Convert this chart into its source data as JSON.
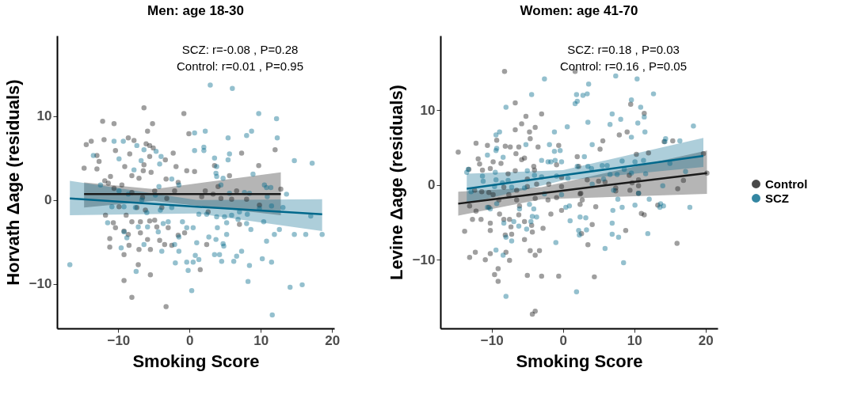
{
  "chart_data": [
    {
      "type": "scatter",
      "title": "Men: age 18-30",
      "xlabel": "Smoking Score",
      "ylabel": "Horvath Δage (residuals)",
      "annotations": [
        "SCZ: r=-0.08 , P=0.28",
        "Control: r=0.01 , P=0.95"
      ],
      "xlim": [
        -18.6,
        20.3
      ],
      "xticks": [
        -10,
        0,
        10,
        20
      ],
      "ylim": [
        -15.3,
        19.6
      ],
      "yticks": [
        -10,
        0,
        10
      ],
      "grid": false,
      "legend": "right",
      "marker": "circle",
      "series": [
        {
          "name": "Control",
          "color": "#1a1a1a",
          "x": [
            -6.4,
            -0.8,
            -12.2,
            -10.6,
            -5.2,
            -5.9,
            -0.1,
            -14.5,
            -13.8,
            -12.0,
            -8.6,
            -7.8,
            -6.1,
            -5.6,
            -5.1,
            -10.4,
            -13.0,
            -8.4,
            -5.6,
            -2.3,
            -3.4,
            -12.7,
            -14.8,
            -13.0,
            -9.1,
            -6.4,
            -1.9,
            -0.4,
            0.7,
            -11.1,
            -8.1,
            -6.5,
            -11.9,
            -11.4,
            -7.1,
            -3.3,
            -1.6,
            -11.8,
            -10.4,
            -8.1,
            -6.9,
            -5.6,
            -4.6,
            -10.7,
            -11.2,
            -8.6,
            -11.2,
            -9.2,
            -6.9,
            -8.5,
            -7.1,
            -5.9,
            -5.5,
            -4.2,
            -9.2,
            -3.5,
            -2.5,
            -7.2,
            -5.5,
            -9.2,
            -8.1,
            -3.3,
            -0.7,
            -7.4,
            -9.9,
            -3.9,
            -2.1,
            -3.2,
            -8.9,
            -6.2,
            -3.0,
            -1.6,
            -4.9,
            -8.1,
            -10.6,
            -6.6,
            -4.9,
            -5.4,
            -9.5,
            7.3,
            12.0,
            9.7,
            3.5,
            5.6,
            4.0,
            6.6,
            2.2,
            12.8,
            3.3,
            1.7,
            5.9,
            8.0,
            4.4,
            2.6,
            7.0,
            2.4,
            1.5,
            9.8
          ],
          "values": [
            11.0,
            10.3,
            9.4,
            9.1,
            9.1,
            8.2,
            7.9,
            6.6,
            7.0,
            7.2,
            7.4,
            7.1,
            6.7,
            6.5,
            6.2,
            5.9,
            5.3,
            5.5,
            5.2,
            5.6,
            4.8,
            4.6,
            3.8,
            3.7,
            4.0,
            4.2,
            4.0,
            3.5,
            3.4,
            2.8,
            2.9,
            3.5,
            2.3,
            2.0,
            2.6,
            2.5,
            2.1,
            -1.8,
            -3.3,
            -2.6,
            -2.6,
            -2.5,
            -3.2,
            -2.7,
            -4.6,
            -4.1,
            -5.6,
            -3.7,
            -3.9,
            -5.4,
            -5.9,
            -4.7,
            -5.9,
            -4.8,
            -6.5,
            -5.3,
            -5.4,
            -7.7,
            -8.9,
            -9.6,
            -11.6,
            -12.7,
            -3.9,
            -0.9,
            -0.8,
            -0.9,
            1.1,
            0.2,
            -1.8,
            -1.2,
            -3.3,
            -4.2,
            -2.4,
            0.9,
            1.4,
            0.3,
            1.1,
            3.3,
            1.8,
            5.6,
            6.0,
            4.1,
            4.1,
            2.9,
            1.6,
            1.1,
            1.1,
            1.3,
            0.7,
            0.4,
            0.1,
            0.1,
            0.2,
            -1.4,
            -2.9,
            -5.3,
            -8.3,
            -0.6
          ]
        },
        {
          "name": "SCZ",
          "color": "#00688b",
          "x": [
            -16.8,
            -13.5,
            -10.6,
            -9.3,
            -7.4,
            -6.4,
            -4.7,
            -4.0,
            -4.2,
            -9.9,
            -6.8,
            -7.8,
            -2.5,
            0.7,
            0.7,
            -12.5,
            -10.9,
            -9.2,
            -7.6,
            -6.0,
            -4.1,
            -2.5,
            -11.5,
            -9.2,
            -8.8,
            -9.6,
            -7.2,
            -5.9,
            -4.4,
            -3.7,
            -3.0,
            -1.5,
            -1.0,
            -0.4,
            0.5,
            -2.1,
            -2.0,
            -1.5,
            0.8,
            -0.4,
            0.5,
            -7.5,
            -0.2,
            0.3,
            -6.4,
            -3.9,
            1.0,
            -4.3,
            -8.6,
            -9.9,
            -6.7,
            -4.8,
            -1.5,
            2.9,
            6.0,
            9.7,
            12.2,
            2.2,
            5.4,
            8.0,
            8.7,
            12.3,
            2.0,
            2.0,
            5.6,
            5.4,
            3.5,
            14.7,
            17.2,
            3.8,
            3.7,
            4.7,
            8.9,
            10.5,
            11.4,
            13.6,
            10.8,
            3.8,
            4.4,
            5.6,
            7.7,
            8.4,
            10.9,
            11.5,
            13.1,
            17.0,
            9.8,
            8.1,
            7.0,
            5.9,
            4.9,
            3.8,
            1.3,
            2.4,
            5.2,
            6.8,
            8.0,
            8.6,
            10.4,
            12.6,
            11.9,
            14.7,
            16.3,
            18.6,
            10.8,
            5.2,
            3.9,
            2.7,
            3.7,
            4.7,
            4.8,
            7.3,
            6.6,
            6.2,
            4.5,
            3.5,
            4.2,
            1.3,
            8.4,
            10.2,
            11.5,
            8.2,
            14.1,
            15.8,
            11.6
          ],
          "values": [
            -7.7,
            5.3,
            7.0,
            7.0,
            6.5,
            6.0,
            5.8,
            5.2,
            4.3,
            4.9,
            4.7,
            3.6,
            2.5,
            8.0,
            5.9,
            1.8,
            -0.8,
            -0.8,
            -0.9,
            -1.5,
            -1.2,
            -0.9,
            -2.7,
            -3.8,
            -4.5,
            -5.7,
            -3.2,
            -3.2,
            -3.8,
            -2.8,
            -2.6,
            -4.4,
            -2.6,
            -3.3,
            -3.3,
            -5.3,
            -7.5,
            -6.1,
            -6.6,
            -7.4,
            -7.4,
            -8.5,
            -8.4,
            -10.8,
            -5.3,
            -6.1,
            -5.1,
            1.6,
            0.7,
            1.1,
            0.0,
            0.6,
            1.8,
            13.7,
            13.3,
            10.3,
            9.7,
            8.2,
            7.4,
            7.7,
            8.2,
            7.4,
            6.3,
            5.9,
            5.5,
            4.8,
            5.0,
            4.7,
            4.4,
            4.0,
            3.2,
            2.6,
            3.1,
            1.8,
            1.5,
            0.7,
            1.5,
            2.8,
            1.8,
            0.8,
            0.9,
            0.8,
            0.4,
            -0.7,
            -0.9,
            -1.9,
            -1.0,
            -1.7,
            -1.4,
            -1.8,
            -2.0,
            -2.0,
            -1.7,
            -1.7,
            -2.7,
            -2.3,
            -2.8,
            -3.5,
            -2.6,
            -3.5,
            -4.1,
            -4.1,
            -4.1,
            -4.1,
            -4.9,
            -4.1,
            -3.3,
            -4.4,
            -4.7,
            -5.2,
            -5.5,
            -6.1,
            -6.7,
            -7.3,
            -7.3,
            -6.5,
            -6.5,
            -7.1,
            -7.8,
            -7.0,
            -7.4,
            -9.7,
            -10.4,
            -10.1,
            -13.7
          ]
        },
        {
          "type": "line",
          "marker": "none",
          "color": "#1a1a1a",
          "x": [
            -14.8,
            -5,
            12.8
          ],
          "values": [
            0.7,
            0.7,
            0.7
          ],
          "lower": [
            -0.9,
            -0.1,
            -1.8
          ],
          "upper": [
            2.1,
            1.3,
            3.3
          ]
        },
        {
          "type": "line",
          "marker": "none",
          "color": "#00688b",
          "x": [
            -16.8,
            1,
            18.6
          ],
          "values": [
            0.2,
            -0.8,
            -1.7
          ],
          "lower": [
            -1.8,
            -1.6,
            -3.7
          ],
          "upper": [
            2.3,
            0.0,
            0.1
          ]
        }
      ]
    },
    {
      "type": "scatter",
      "title": "Women: age 41-70",
      "xlabel": "Smoking Score",
      "ylabel": "Levine Δage (residuals)",
      "annotations": [
        "SCZ: r=0.18 , P=0.03",
        "Control: r=0.16 , P=0.05"
      ],
      "xlim": [
        -17.2,
        21.7
      ],
      "xticks": [
        -10,
        0,
        10,
        20
      ],
      "ylim": [
        -19.2,
        20
      ],
      "yticks": [
        -10,
        0,
        10
      ],
      "grid": false,
      "legend": "right",
      "marker": "circle",
      "series": [
        {
          "name": "Control",
          "color": "#1a1a1a",
          "x": [
            -8.2,
            1.7,
            -6.7,
            -5.2,
            -3.0,
            -5.8,
            -3.9,
            -4.7,
            -6.7,
            -9.3,
            -12.2,
            -10.6,
            -8.1,
            -7.4,
            -3.5,
            -0.6,
            -6.2,
            -4.6,
            -6.6,
            -5.4,
            -5.8,
            -4.1,
            2.0,
            -11.9,
            -11.7,
            -13.2,
            -9.8,
            -8.7,
            -11.3,
            -10.2,
            -14.7,
            -7.7,
            -6.7,
            -5.0,
            -4.0,
            -0.9,
            -0.2,
            -8.3,
            -10.4,
            -11.4,
            -12.4,
            -6.5,
            -5.0,
            -3.7,
            -2.0,
            -0.2,
            -9.8,
            -9.0,
            -7.6,
            -6.5,
            -6.1,
            -3.9,
            -2.1,
            -0.9,
            -13.1,
            -12.2,
            -10.4,
            -8.9,
            -8.3,
            -7.5,
            -6.2,
            -7.3,
            -5.4,
            -4.4,
            -2.8,
            -1.7,
            -0.2,
            2.4,
            2.4,
            -13.8,
            -12.7,
            -11.5,
            -10.2,
            -10.2,
            -8.1,
            -7.2,
            -5.4,
            -4.3,
            -13.1,
            -12.3,
            -10.9,
            -10.2,
            -9.1,
            -9.6,
            -9.1,
            -8.0,
            -7.5,
            -4.6,
            -3.9,
            -3.3,
            -5.0,
            -3.0,
            -0.6,
            -4.3,
            -3.9,
            9.5,
            11.4,
            7.9,
            9.0,
            5.6,
            5.2,
            2.2,
            10.3,
            12.0,
            15.4,
            3.4,
            5.0,
            5.9,
            7.4,
            9.3,
            9.7,
            10.6,
            10.6,
            7.4,
            9.4,
            10.6,
            2.5,
            2.7,
            4.6,
            11.0,
            11.4,
            13.3,
            16.1,
            16.9,
            20.2,
            19.7,
            14.2,
            4.1,
            2.6,
            3.5,
            8.8,
            16.0,
            4.4
          ],
          "values": [
            15.2,
            15.2,
            11.0,
            9.2,
            9.5,
            8.2,
            7.7,
            7.1,
            7.4,
            6.0,
            5.6,
            5.3,
            5.2,
            5.1,
            5.1,
            5.3,
            5.1,
            6.2,
            4.2,
            3.6,
            3.4,
            2.5,
            3.8,
            3.5,
            2.8,
            2.1,
            3.1,
            2.9,
            2.0,
            2.2,
            4.4,
            1.5,
            1.9,
            0.8,
            2.0,
            2.7,
            1.0,
            -0.3,
            -1.0,
            -0.9,
            -0.7,
            -0.7,
            -0.2,
            0.1,
            0.1,
            -0.2,
            -1.3,
            -2.0,
            -1.3,
            -2.0,
            -2.8,
            -1.8,
            -2.0,
            -1.7,
            -2.8,
            -3.5,
            -3.0,
            -3.9,
            -4.6,
            -4.6,
            -4.0,
            -5.6,
            -4.9,
            -5.4,
            -5.8,
            -3.9,
            -3.4,
            -2.6,
            -1.2,
            -6.2,
            -4.6,
            -4.6,
            -5.1,
            -6.1,
            -6.7,
            -6.6,
            -7.3,
            -6.3,
            -9.7,
            -9.0,
            -10.0,
            -9.2,
            -11.2,
            -12.0,
            -12.9,
            -9.0,
            -10.1,
            -8.8,
            -9.4,
            -8.8,
            -12.1,
            -12.2,
            -12.2,
            -17.3,
            -16.9,
            10.8,
            9.6,
            6.7,
            7.1,
            5.9,
            4.8,
            2.5,
            4.1,
            4.3,
            5.9,
            0.7,
            0.5,
            0.4,
            -0.4,
            1.3,
            0.3,
            0.7,
            -0.1,
            -0.8,
            -0.7,
            -1.1,
            -1.1,
            -2.0,
            -2.9,
            -3.8,
            -4.0,
            -2.7,
            -0.5,
            0.6,
            1.6,
            4.2,
            5.8,
            -5.3,
            -6.5,
            -8.0,
            -6.1,
            -7.8,
            -12.3
          ]
        },
        {
          "name": "SCZ",
          "color": "#00688b",
          "x": [
            -2.6,
            -4.4,
            -8.0,
            1.9,
            1.7,
            2.0,
            -8.9,
            -9.4,
            0.6,
            -1.2,
            -9.3,
            -9.4,
            -10.6,
            -8.4,
            -5.2,
            -1.9,
            -1.2,
            -0.4,
            -3.0,
            -2.1,
            -1.7,
            -1.1,
            -0.2,
            -13.5,
            -13.3,
            -11.3,
            -9.5,
            -9.4,
            -7.7,
            -5.0,
            -4.0,
            -3.0,
            -0.9,
            0.7,
            2.0,
            -11.2,
            -12.9,
            -9.6,
            -8.5,
            -7.2,
            -5.4,
            -2.6,
            -0.2,
            -10.2,
            -10.6,
            -9.3,
            0.9,
            0.4,
            -6.1,
            -4.7,
            -4.1,
            -4.3,
            -3.7,
            -8.3,
            -6.9,
            -6.2,
            -4.5,
            -5.1,
            1.0,
            2.4,
            2.2,
            2.3,
            -8.0,
            -7.2,
            -9.4,
            -8.4,
            -1.0,
            -8.0,
            1.9,
            7.4,
            10.4,
            3.6,
            2.8,
            3.4,
            12.7,
            9.6,
            10.9,
            6.9,
            8.1,
            11.4,
            3.5,
            6.6,
            10.5,
            11.5,
            9.6,
            18.3,
            14.4,
            14.3,
            16.4,
            4.1,
            3.0,
            3.5,
            4.0,
            6.2,
            5.5,
            8.3,
            10.1,
            11.3,
            15.0,
            8.6,
            9.6,
            11.6,
            17.2,
            6.6,
            7.6,
            5.7,
            4.1,
            7.1,
            10.6,
            14.0,
            7.7,
            12.1,
            13.7,
            13.6,
            14.1,
            17.8,
            10.1,
            8.3,
            7.0,
            3.2,
            6.9,
            3.3,
            11.9,
            6.9,
            7.8,
            5.9,
            8.5
          ],
          "values": [
            14.2,
            12.1,
            10.4,
            12.1,
            10.9,
            11.2,
            7.1,
            6.7,
            7.8,
            7.1,
            4.9,
            4.6,
            4.0,
            3.7,
            5.4,
            5.4,
            4.5,
            4.6,
            3.3,
            3.1,
            3.1,
            3.3,
            3.1,
            1.7,
            2.1,
            1.2,
            1.7,
            0.7,
            0.6,
            1.9,
            1.3,
            1.1,
            1.2,
            0.9,
            2.5,
            0.5,
            -0.9,
            -0.2,
            0.3,
            -0.3,
            -0.4,
            -1.2,
            -1.3,
            -3.2,
            -3.0,
            -2.5,
            -2.8,
            -3.0,
            -3.2,
            -2.6,
            -3.2,
            -4.2,
            -4.3,
            -5.1,
            -4.9,
            -5.5,
            -4.9,
            -5.9,
            -4.8,
            -4.3,
            -6.1,
            -6.7,
            -7.0,
            -7.5,
            -8.7,
            -9.4,
            -7.7,
            -14.9,
            -14.3,
            14.6,
            14.2,
            13.5,
            12.0,
            12.2,
            12.2,
            11.4,
            10.4,
            9.5,
            8.8,
            9.1,
            8.4,
            8.1,
            8.3,
            7.1,
            6.4,
            7.9,
            6.2,
            5.8,
            5.9,
            5.4,
            3.8,
            2.5,
            2.2,
            2.6,
            2.6,
            3.2,
            3.1,
            3.3,
            2.9,
            2.1,
            1.6,
            1.5,
            1.8,
            1.4,
            1.4,
            0.8,
            0.1,
            -0.7,
            -1.1,
            -0.1,
            -1.9,
            -1.9,
            -2.5,
            -3.0,
            -2.8,
            -3.0,
            -2.7,
            -3.0,
            -3.4,
            -4.4,
            -5.1,
            -6.0,
            -6.5,
            -6.6,
            -7.0,
            -8.5,
            -10.4
          ]
        },
        {
          "type": "line",
          "marker": "none",
          "color": "#1a1a1a",
          "x": [
            -14.7,
            -3,
            20.2
          ],
          "values": [
            -2.5,
            -1.1,
            1.6
          ],
          "lower": [
            -4.1,
            -1.9,
            -1.2
          ],
          "upper": [
            -0.9,
            -0.3,
            4.6
          ]
        },
        {
          "type": "line",
          "marker": "none",
          "color": "#00688b",
          "x": [
            -13.5,
            0,
            19.7
          ],
          "values": [
            -0.5,
            1.3,
            3.9
          ],
          "lower": [
            -2.5,
            0.6,
            2.4
          ],
          "upper": [
            1.5,
            2.0,
            6.3
          ]
        }
      ]
    }
  ]
}
